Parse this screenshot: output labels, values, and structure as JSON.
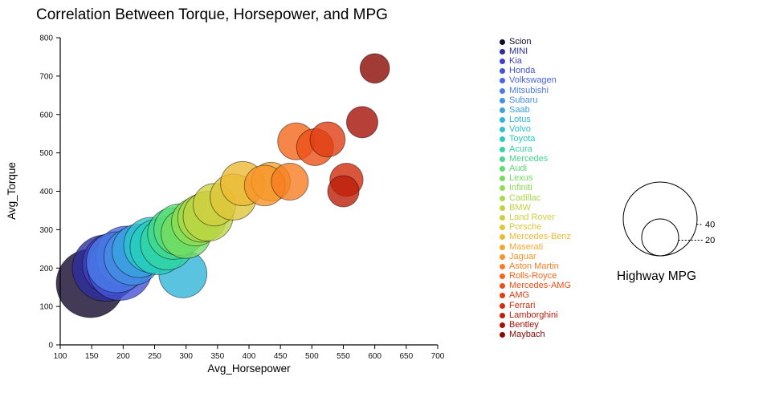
{
  "chart_data": {
    "type": "scatter",
    "title": "Correlation Between Torque, Horsepower, and MPG",
    "xlabel": "Avg_Horsepower",
    "ylabel": "Avg_Torque",
    "xlim": [
      100,
      700
    ],
    "ylim": [
      0,
      800
    ],
    "x_ticks": [
      100,
      150,
      200,
      250,
      300,
      350,
      400,
      450,
      500,
      550,
      600,
      650,
      700
    ],
    "y_ticks": [
      0,
      100,
      200,
      300,
      400,
      500,
      600,
      700,
      800
    ],
    "grid": false,
    "legend_position": "right",
    "size_legend": {
      "title": "Highway MPG",
      "values": [
        40,
        20
      ]
    },
    "series": [
      {
        "name": "Scion",
        "color": "#14092e",
        "avg_horsepower": 148,
        "avg_torque": 160,
        "highway_mpg": 37
      },
      {
        "name": "MINI",
        "color": "#2d2e9e",
        "avg_horsepower": 172,
        "avg_torque": 200,
        "highway_mpg": 36
      },
      {
        "name": "Kia",
        "color": "#4040c8",
        "avg_horsepower": 185,
        "avg_torque": 210,
        "highway_mpg": 34
      },
      {
        "name": "Honda",
        "color": "#4553d6",
        "avg_horsepower": 195,
        "avg_torque": 200,
        "highway_mpg": 35
      },
      {
        "name": "Volkswagen",
        "color": "#4766e3",
        "avg_horsepower": 205,
        "avg_torque": 230,
        "highway_mpg": 33
      },
      {
        "name": "Mitsubishi",
        "color": "#4a7ce6",
        "avg_horsepower": 190,
        "avg_torque": 215,
        "highway_mpg": 33
      },
      {
        "name": "Subaru",
        "color": "#4490e4",
        "avg_horsepower": 215,
        "avg_torque": 230,
        "highway_mpg": 31
      },
      {
        "name": "Saab",
        "color": "#3aa3de",
        "avg_horsepower": 225,
        "avg_torque": 245,
        "highway_mpg": 29
      },
      {
        "name": "Lotus",
        "color": "#30b4d8",
        "avg_horsepower": 295,
        "avg_torque": 185,
        "highway_mpg": 26
      },
      {
        "name": "Volvo",
        "color": "#2ac3cd",
        "avg_horsepower": 245,
        "avg_torque": 260,
        "highway_mpg": 30
      },
      {
        "name": "Toyota",
        "color": "#28cdbb",
        "avg_horsepower": 255,
        "avg_torque": 255,
        "highway_mpg": 30
      },
      {
        "name": "Acura",
        "color": "#32d4a4",
        "avg_horsepower": 270,
        "avg_torque": 265,
        "highway_mpg": 29
      },
      {
        "name": "Mercedes",
        "color": "#44d98c",
        "avg_horsepower": 280,
        "avg_torque": 290,
        "highway_mpg": 28
      },
      {
        "name": "Audi",
        "color": "#5bdc75",
        "avg_horsepower": 290,
        "avg_torque": 300,
        "highway_mpg": 28
      },
      {
        "name": "Lexus",
        "color": "#74dd61",
        "avg_horsepower": 300,
        "avg_torque": 290,
        "highway_mpg": 27
      },
      {
        "name": "Infiniti",
        "color": "#8edd52",
        "avg_horsepower": 315,
        "avg_torque": 320,
        "highway_mpg": 26
      },
      {
        "name": "Cadillac",
        "color": "#a6da48",
        "avg_horsepower": 325,
        "avg_torque": 330,
        "highway_mpg": 26
      },
      {
        "name": "BMW",
        "color": "#bcd542",
        "avg_horsepower": 335,
        "avg_torque": 335,
        "highway_mpg": 27
      },
      {
        "name": "Land Rover",
        "color": "#cfcf3e",
        "avg_horsepower": 345,
        "avg_torque": 365,
        "highway_mpg": 23
      },
      {
        "name": "Porsche",
        "color": "#dfc63a",
        "avg_horsepower": 375,
        "avg_torque": 385,
        "highway_mpg": 25
      },
      {
        "name": "Mercedes-Benz",
        "color": "#ecb935",
        "avg_horsepower": 390,
        "avg_torque": 420,
        "highway_mpg": 24
      },
      {
        "name": "Maserati",
        "color": "#f4a72f",
        "avg_horsepower": 435,
        "avg_torque": 425,
        "highway_mpg": 21
      },
      {
        "name": "Jaguar",
        "color": "#f89329",
        "avg_horsepower": 425,
        "avg_torque": 415,
        "highway_mpg": 22
      },
      {
        "name": "Aston Martin",
        "color": "#f87d22",
        "avg_horsepower": 465,
        "avg_torque": 425,
        "highway_mpg": 20
      },
      {
        "name": "Rolls-Royce",
        "color": "#f4661c",
        "avg_horsepower": 475,
        "avg_torque": 530,
        "highway_mpg": 20
      },
      {
        "name": "Mercedes-AMG",
        "color": "#ec5016",
        "avg_horsepower": 505,
        "avg_torque": 515,
        "highway_mpg": 20
      },
      {
        "name": "AMG",
        "color": "#e03d11",
        "avg_horsepower": 525,
        "avg_torque": 535,
        "highway_mpg": 19
      },
      {
        "name": "Ferrari",
        "color": "#d02c0d",
        "avg_horsepower": 555,
        "avg_torque": 430,
        "highway_mpg": 18
      },
      {
        "name": "Lamborghini",
        "color": "#bc1e09",
        "avg_horsepower": 550,
        "avg_torque": 400,
        "highway_mpg": 17
      },
      {
        "name": "Bentley",
        "color": "#a51206",
        "avg_horsepower": 580,
        "avg_torque": 580,
        "highway_mpg": 17
      },
      {
        "name": "Maybach",
        "color": "#8b0903",
        "avg_horsepower": 600,
        "avg_torque": 720,
        "highway_mpg": 16
      }
    ]
  }
}
